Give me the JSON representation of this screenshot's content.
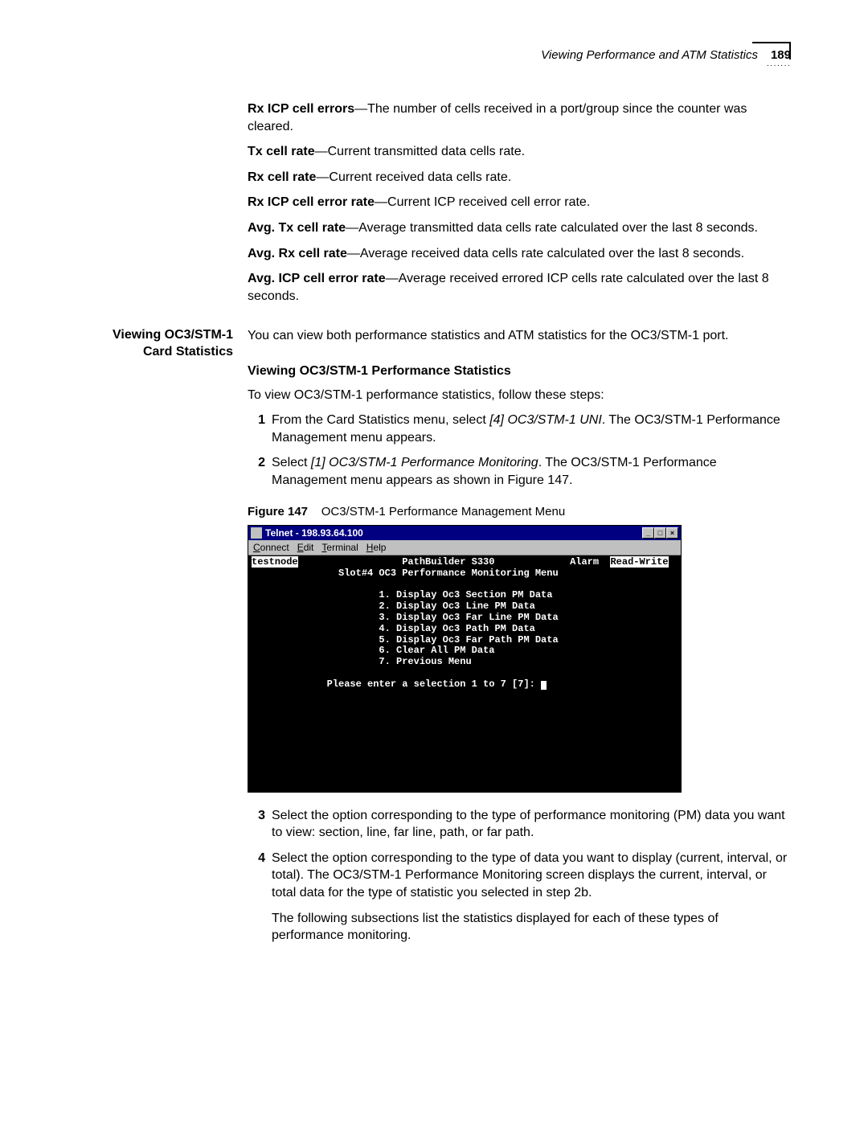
{
  "header": {
    "section_title": "Viewing Performance and ATM Statistics",
    "page_number": "189"
  },
  "definitions": [
    {
      "term": "Rx ICP cell errors",
      "desc": "—The number of cells received in a port/group since the counter was cleared."
    },
    {
      "term": "Tx cell rate",
      "desc": "—Current transmitted data cells rate."
    },
    {
      "term": "Rx cell rate",
      "desc": "—Current received data cells rate."
    },
    {
      "term": "Rx ICP cell error rate",
      "desc": "—Current ICP received cell error rate."
    },
    {
      "term": "Avg. Tx cell rate",
      "desc": "—Average transmitted data cells rate calculated over the last 8 seconds."
    },
    {
      "term": "Avg. Rx cell rate",
      "desc": "—Average received data cells rate calculated over the last 8 seconds."
    },
    {
      "term": "Avg. ICP cell error rate",
      "desc": "—Average received errored ICP cells rate calculated over the last 8 seconds."
    }
  ],
  "section": {
    "label_line1": "Viewing OC3/STM-1",
    "label_line2": "Card Statistics",
    "intro": "You can view both performance statistics and ATM statistics for the OC3/STM-1 port."
  },
  "subheading": "Viewing OC3/STM-1 Performance Statistics",
  "sub_intro": "To view OC3/STM-1 performance statistics, follow these steps:",
  "steps_top": [
    {
      "num": "1",
      "pre": "From the Card Statistics menu, select ",
      "ital": "[4] OC3/STM-1 UNI",
      "post": ". The OC3/STM-1 Performance Management menu appears."
    },
    {
      "num": "2",
      "pre": "Select ",
      "ital": "[1] OC3/STM-1 Performance Monitoring",
      "post": ". The OC3/STM-1 Performance Management menu appears as shown in Figure 147."
    }
  ],
  "figure": {
    "label": "Figure 147",
    "caption": "OC3/STM-1 Performance Management Menu"
  },
  "telnet": {
    "title": "Telnet - 198.93.64.100",
    "menus": [
      {
        "u": "C",
        "rest": "onnect"
      },
      {
        "u": "E",
        "rest": "dit"
      },
      {
        "u": "T",
        "rest": "erminal"
      },
      {
        "u": "H",
        "rest": "elp"
      }
    ],
    "win_buttons": {
      "min": "_",
      "max": "□",
      "close": "×"
    },
    "node": "testnode",
    "device": "PathBuilder S330",
    "alarm_label": "Alarm",
    "mode": "Read-Write",
    "menu_title": "Slot#4 OC3 Performance Monitoring Menu",
    "options": [
      "1. Display Oc3 Section PM Data",
      "2. Display Oc3 Line PM Data",
      "3. Display Oc3 Far Line PM Data",
      "4. Display Oc3 Path PM Data",
      "5. Display Oc3 Far Path PM Data",
      "6. Clear All PM Data",
      "7. Previous Menu"
    ],
    "prompt": "Please enter a selection 1 to 7 [7]: "
  },
  "steps_bottom": [
    {
      "num": "3",
      "text": "Select the option corresponding to the type of performance monitoring (PM) data you want to view: section, line, far line, path, or far path."
    },
    {
      "num": "4",
      "text": "Select the option corresponding to the type of data you want to display (current, interval, or total). The OC3/STM-1 Performance Monitoring screen displays the current, interval, or total data for the type of statistic you selected in step 2b."
    }
  ],
  "closing": "The following subsections list the statistics displayed for each of these types of performance monitoring."
}
